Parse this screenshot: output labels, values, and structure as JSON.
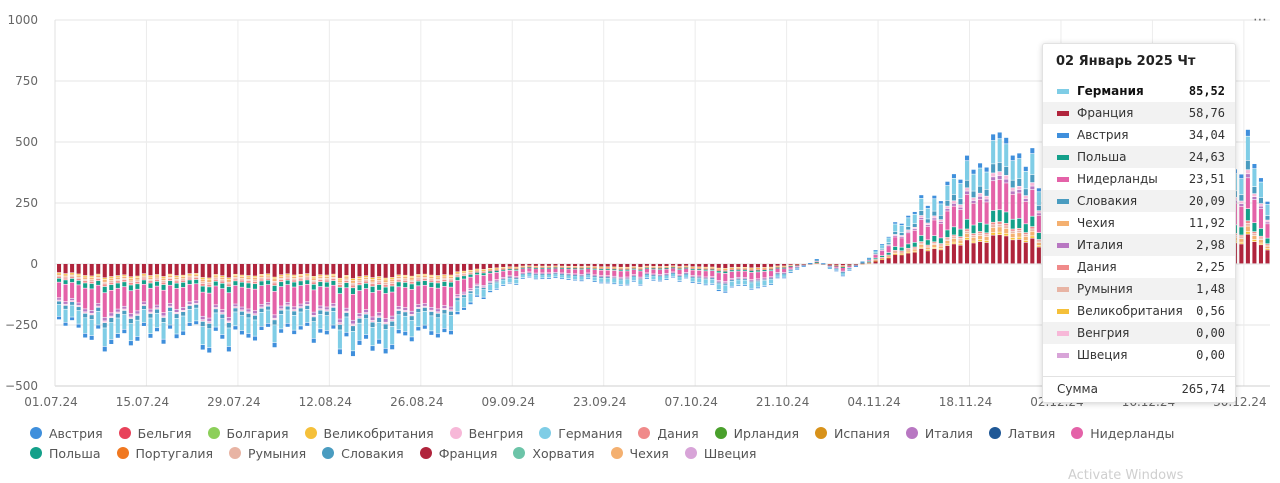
{
  "menu_label": "⋯",
  "watermark": "Activate Windows",
  "chart_data": {
    "type": "bar",
    "stacked": true,
    "title": "",
    "xlabel": "",
    "ylabel": "",
    "ylim": [
      -500,
      1000
    ],
    "yticks": [
      1000,
      750,
      500,
      250,
      0,
      -250,
      -500
    ],
    "ytick_labels": [
      "1000",
      "750",
      "500",
      "250",
      "0",
      "−250",
      "−500"
    ],
    "grid": true,
    "legend_position": "bottom",
    "x_start": "2024-07-01",
    "x_end": "2025-01-02",
    "xtick_labels": [
      "01.07.24",
      "15.07.24",
      "29.07.24",
      "12.08.24",
      "26.08.24",
      "09.09.24",
      "23.09.24",
      "07.10.24",
      "21.10.24",
      "04.11.24",
      "18.11.24",
      "02.12.24",
      "16.12.24",
      "30.12.24"
    ],
    "legend": [
      {
        "name": "Австрия",
        "color": "#3f8fdc"
      },
      {
        "name": "Бельгия",
        "color": "#e8425a"
      },
      {
        "name": "Болгария",
        "color": "#8ccf5a"
      },
      {
        "name": "Великобритания",
        "color": "#f5c03a"
      },
      {
        "name": "Венгрия",
        "color": "#f7b8d8"
      },
      {
        "name": "Германия",
        "color": "#7fcde6"
      },
      {
        "name": "Дания",
        "color": "#f08a8a"
      },
      {
        "name": "Ирландия",
        "color": "#4aa02c"
      },
      {
        "name": "Испания",
        "color": "#d8921a"
      },
      {
        "name": "Италия",
        "color": "#b877c2"
      },
      {
        "name": "Латвия",
        "color": "#1f5896"
      },
      {
        "name": "Нидерланды",
        "color": "#e462a8"
      },
      {
        "name": "Польша",
        "color": "#14a08a"
      },
      {
        "name": "Португалия",
        "color": "#f07820"
      },
      {
        "name": "Румыния",
        "color": "#e8b4a4"
      },
      {
        "name": "Словакия",
        "color": "#4a9cc0"
      },
      {
        "name": "Франция",
        "color": "#b0243c"
      },
      {
        "name": "Хорватия",
        "color": "#6cc4a8"
      },
      {
        "name": "Чехия",
        "color": "#f4b070"
      },
      {
        "name": "Швеция",
        "color": "#d8a4d8"
      }
    ],
    "stack_order": [
      "Франция",
      "Великобритания",
      "Чехия",
      "Румыния",
      "Дания",
      "Польша",
      "Нидерланды",
      "Италия",
      "Венгрия",
      "Словакия",
      "Германия",
      "Австрия"
    ],
    "total_profile": [
      [
        "2024-07-01",
        -230
      ],
      [
        "2024-07-05",
        -310
      ],
      [
        "2024-07-09",
        -320
      ],
      [
        "2024-07-13",
        -300
      ],
      [
        "2024-07-17",
        -310
      ],
      [
        "2024-07-21",
        -290
      ],
      [
        "2024-07-25",
        -320
      ],
      [
        "2024-07-29",
        -300
      ],
      [
        "2024-08-02",
        -295
      ],
      [
        "2024-08-06",
        -285
      ],
      [
        "2024-08-10",
        -300
      ],
      [
        "2024-08-14",
        -330
      ],
      [
        "2024-08-18",
        -345
      ],
      [
        "2024-08-22",
        -330
      ],
      [
        "2024-08-26",
        -320
      ],
      [
        "2024-08-30",
        -250
      ],
      [
        "2024-09-03",
        -140
      ],
      [
        "2024-09-07",
        -100
      ],
      [
        "2024-09-11",
        -60
      ],
      [
        "2024-09-15",
        -50
      ],
      [
        "2024-09-19",
        -70
      ],
      [
        "2024-09-23",
        -90
      ],
      [
        "2024-09-27",
        -80
      ],
      [
        "2024-10-01",
        -70
      ],
      [
        "2024-10-05",
        -60
      ],
      [
        "2024-10-09",
        -100
      ],
      [
        "2024-10-13",
        -110
      ],
      [
        "2024-10-17",
        -90
      ],
      [
        "2024-10-21",
        -40
      ],
      [
        "2024-10-25",
        20
      ],
      [
        "2024-10-29",
        -50
      ],
      [
        "2024-11-02",
        30
      ],
      [
        "2024-11-05",
        120
      ],
      [
        "2024-11-09",
        260
      ],
      [
        "2024-11-13",
        300
      ],
      [
        "2024-11-16",
        420
      ],
      [
        "2024-11-19",
        380
      ],
      [
        "2024-11-22",
        500
      ],
      [
        "2024-11-26",
        470
      ],
      [
        "2024-11-30",
        260
      ],
      [
        "2024-12-03",
        380
      ],
      [
        "2024-12-07",
        300
      ],
      [
        "2024-12-11",
        340
      ],
      [
        "2024-12-15",
        380
      ],
      [
        "2024-12-19",
        420
      ],
      [
        "2024-12-23",
        390
      ],
      [
        "2024-12-27",
        360
      ],
      [
        "2024-12-30",
        470
      ],
      [
        "2025-01-02",
        265.74
      ]
    ],
    "tooltip": {
      "date": "02 Январь 2025 Чт",
      "rows": [
        {
          "name": "Германия",
          "value": "85,52",
          "color": "#7fcde6",
          "bold": true
        },
        {
          "name": "Франция",
          "value": "58,76",
          "color": "#b0243c"
        },
        {
          "name": "Австрия",
          "value": "34,04",
          "color": "#3f8fdc"
        },
        {
          "name": "Польша",
          "value": "24,63",
          "color": "#14a08a"
        },
        {
          "name": "Нидерланды",
          "value": "23,51",
          "color": "#e462a8"
        },
        {
          "name": "Словакия",
          "value": "20,09",
          "color": "#4a9cc0"
        },
        {
          "name": "Чехия",
          "value": "11,92",
          "color": "#f4b070"
        },
        {
          "name": "Италия",
          "value": "2,98",
          "color": "#b877c2"
        },
        {
          "name": "Дания",
          "value": "2,25",
          "color": "#f08a8a"
        },
        {
          "name": "Румыния",
          "value": "1,48",
          "color": "#e8b4a4"
        },
        {
          "name": "Великобритания",
          "value": "0,56",
          "color": "#f5c03a"
        },
        {
          "name": "Венгрия",
          "value": "0,00",
          "color": "#f7b8d8"
        },
        {
          "name": "Швеция",
          "value": "0,00",
          "color": "#d8a4d8"
        }
      ],
      "sum_label": "Сумма",
      "sum_value": "265,74"
    }
  }
}
